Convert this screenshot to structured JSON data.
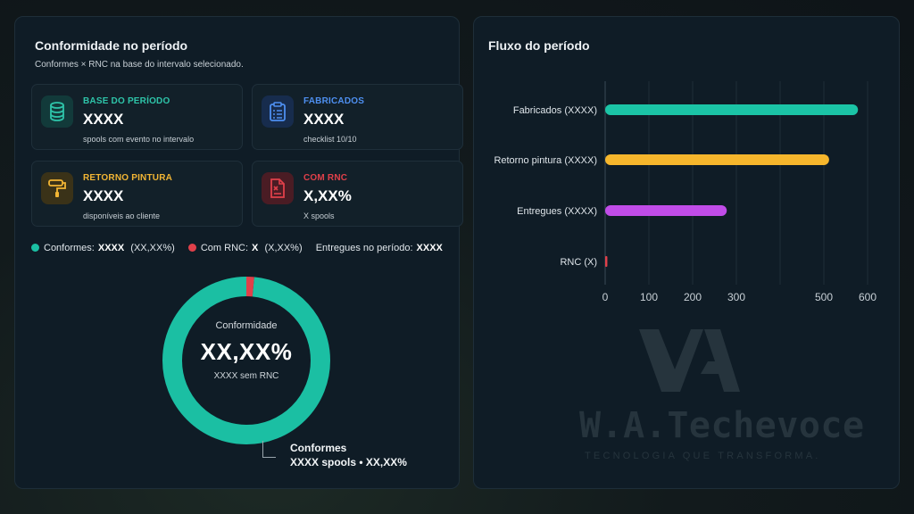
{
  "left_panel": {
    "title": "Conformidade no período",
    "subtitle": "Conformes × RNC na base do intervalo selecionado.",
    "cards": [
      {
        "label": "BASE DO PERÍODO",
        "value": "XXXX",
        "desc": "spools com evento no intervalo",
        "color": "#2ec4a9",
        "icon": "database-icon"
      },
      {
        "label": "FABRICADOS",
        "value": "XXXX",
        "desc": "checklist 10/10",
        "color": "#4e8ff0",
        "icon": "clipboard-icon"
      },
      {
        "label": "RETORNO PINTURA",
        "value": "XXXX",
        "desc": "disponíveis ao cliente",
        "color": "#f2b534",
        "icon": "paint-roller-icon"
      },
      {
        "label": "COM RNC",
        "value": "X,XX%",
        "desc": "X spools",
        "color": "#e0404a",
        "icon": "file-x-icon"
      }
    ],
    "legend": {
      "conformes_label": "Conformes:",
      "conformes_value": "XXXX",
      "conformes_pct": "(XX,XX%)",
      "rnc_label": "Com RNC:",
      "rnc_value": "X",
      "rnc_pct": "(X,XX%)",
      "entregues_label": "Entregues no período:",
      "entregues_value": "XXXX"
    },
    "donut": {
      "label": "Conformidade",
      "value": "XX,XX%",
      "sub": "XXXX sem RNC",
      "conformes_fraction": 0.985,
      "rnc_fraction": 0.015,
      "conformes_color": "#1bbfa3",
      "rnc_color": "#e0404a"
    },
    "callout": {
      "title": "Conformes",
      "detail": "XXXX spools • XX,XX%"
    }
  },
  "right_panel": {
    "title": "Fluxo do período",
    "watermark": {
      "brand": "W.A.Techevoce",
      "tagline": "TECNOLOGIA QUE TRANSFORMA."
    }
  },
  "chart_data": {
    "type": "bar",
    "orientation": "horizontal",
    "categories": [
      "Fabricados (XXXX)",
      "Retorno pintura (XXXX)",
      "Entregues (XXXX)",
      "RNC  (X)"
    ],
    "values": [
      578,
      512,
      278,
      5
    ],
    "colors": [
      "#1bc4a6",
      "#f6b62c",
      "#c04ce8",
      "#e0404a"
    ],
    "xlim": [
      0,
      600
    ],
    "xticks": [
      0,
      100,
      200,
      300,
      500,
      600
    ],
    "grid": true
  }
}
